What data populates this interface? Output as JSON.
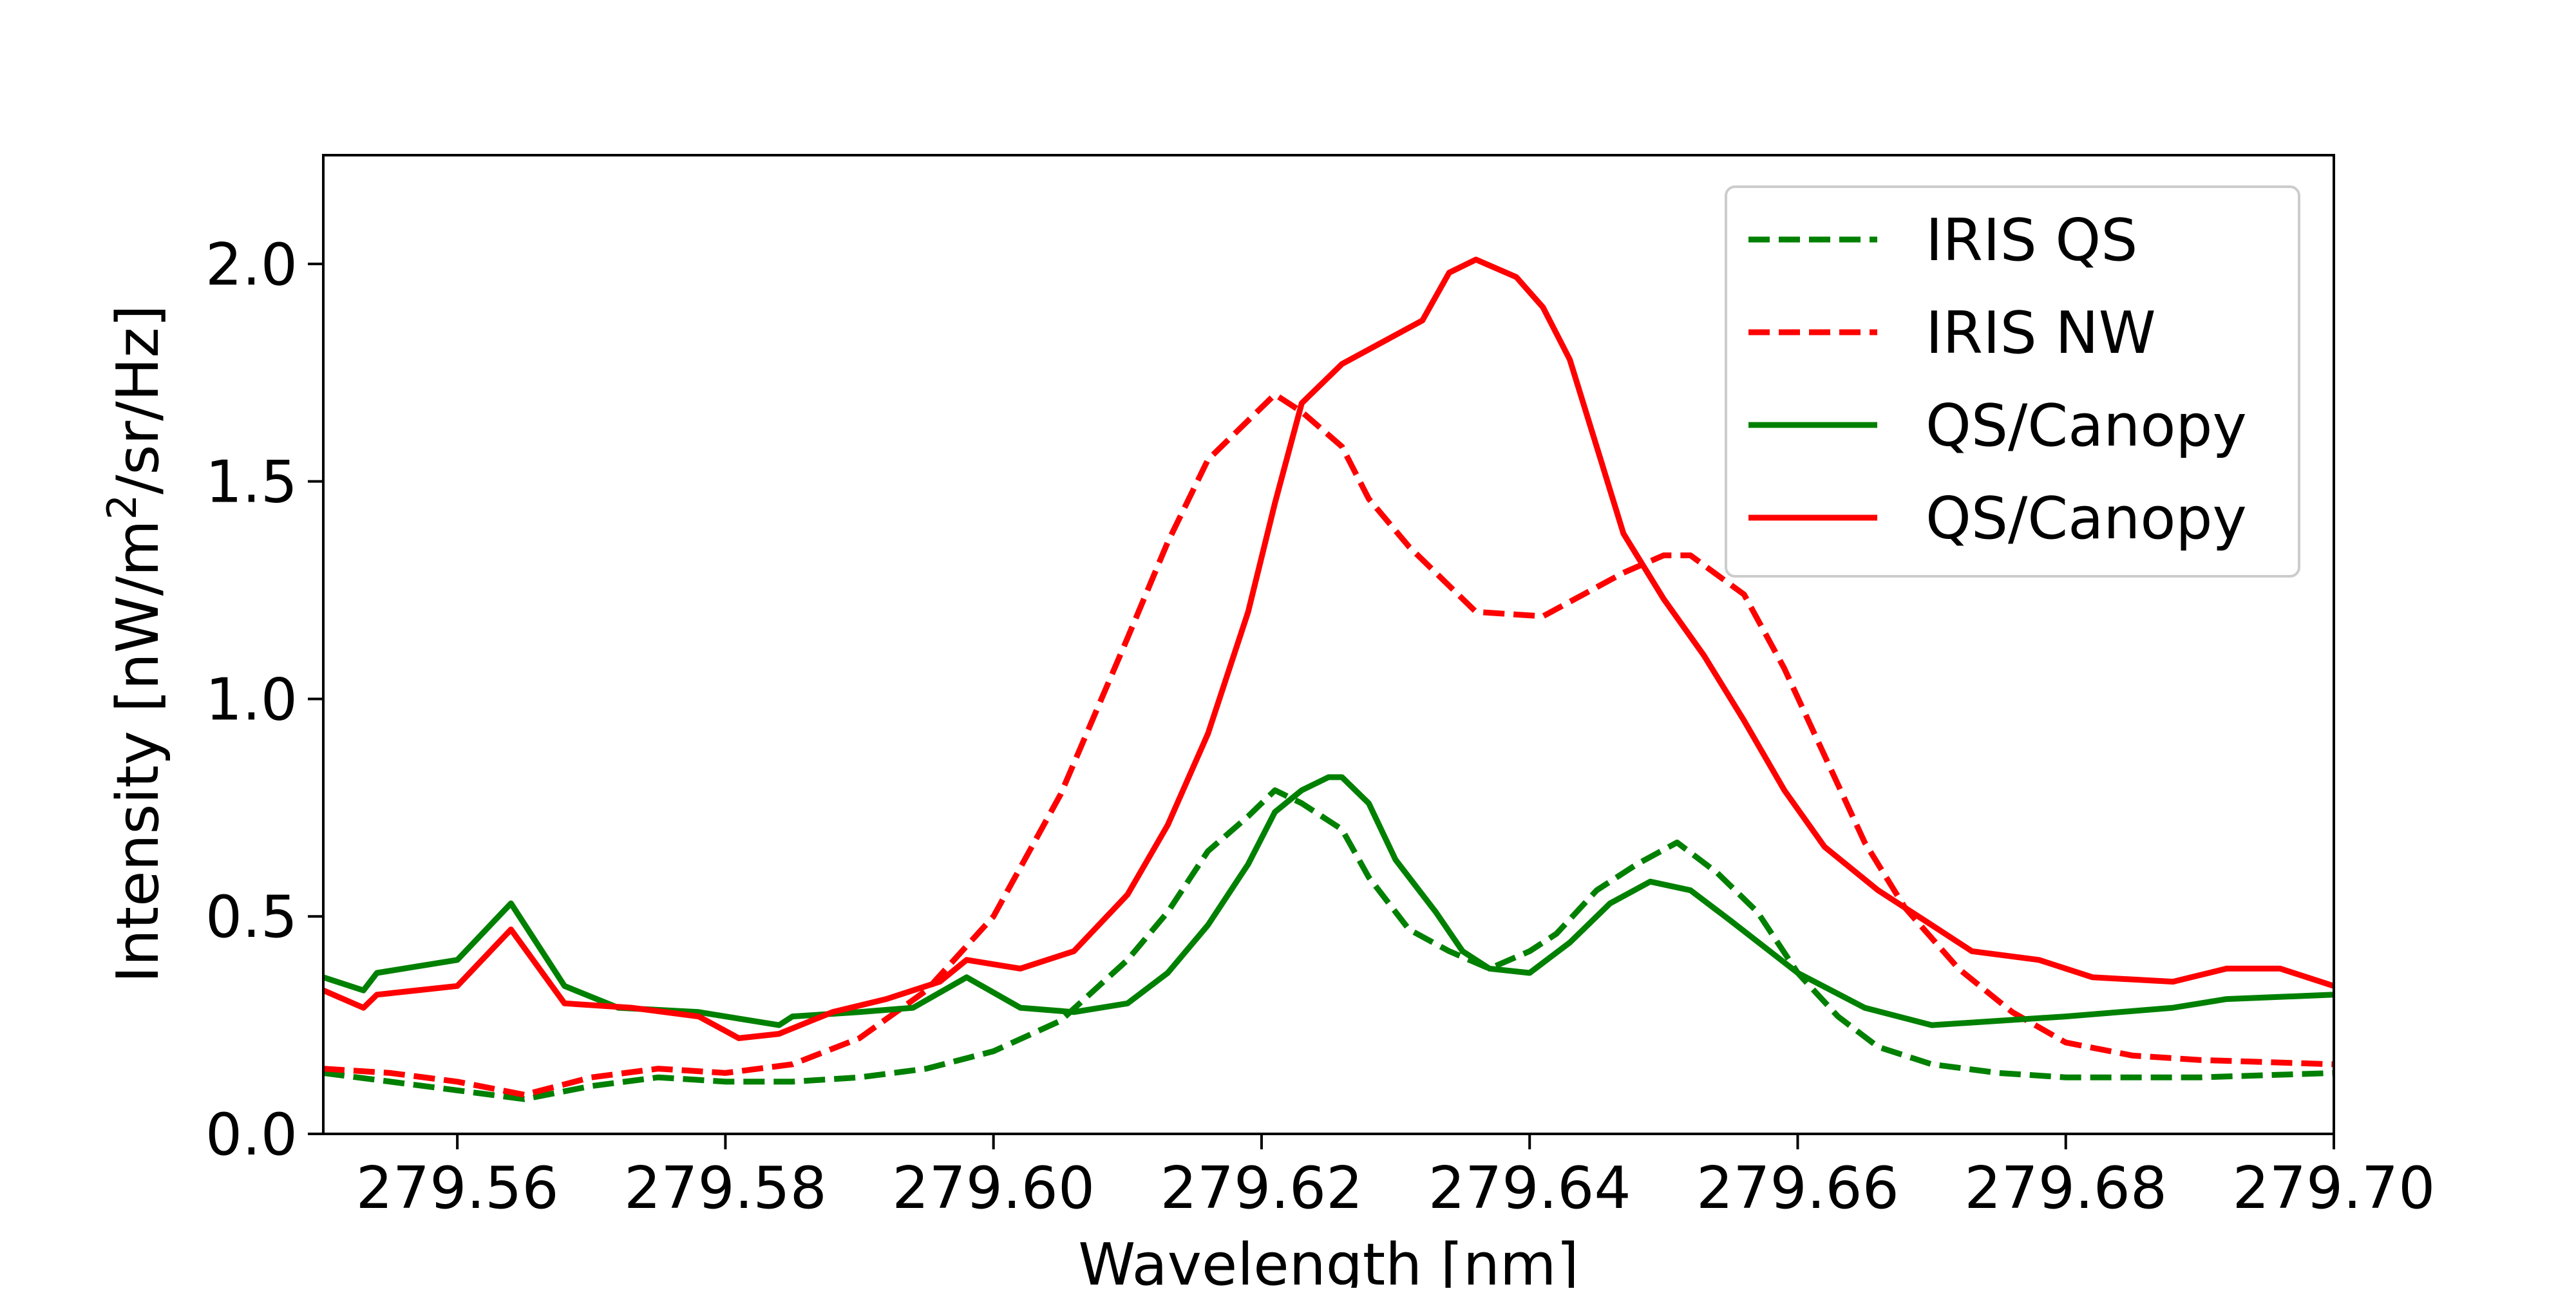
{
  "chart_data": {
    "type": "line",
    "title": "",
    "xlabel": "Wavelength [nm]",
    "ylabel_main": "Intensity [nW/m",
    "ylabel_sup": "2",
    "ylabel_tail": "/sr/Hz]",
    "xlim": [
      279.55,
      279.7
    ],
    "ylim": [
      0.0,
      2.25
    ],
    "grid": false,
    "legend_position": "top-right",
    "x_ticks": [
      {
        "value": 279.56,
        "label": "279.56"
      },
      {
        "value": 279.58,
        "label": "279.58"
      },
      {
        "value": 279.6,
        "label": "279.60"
      },
      {
        "value": 279.62,
        "label": "279.62"
      },
      {
        "value": 279.64,
        "label": "279.64"
      },
      {
        "value": 279.66,
        "label": "279.66"
      },
      {
        "value": 279.68,
        "label": "279.68"
      },
      {
        "value": 279.7,
        "label": "279.70"
      }
    ],
    "y_ticks": [
      {
        "value": 0.0,
        "label": "0.0"
      },
      {
        "value": 0.5,
        "label": "0.5"
      },
      {
        "value": 1.0,
        "label": "1.0"
      },
      {
        "value": 1.5,
        "label": "1.5"
      },
      {
        "value": 2.0,
        "label": "2.0"
      }
    ],
    "series": [
      {
        "name": "IRIS QS",
        "color": "#008000",
        "dash": true,
        "points": [
          [
            279.55,
            0.14
          ],
          [
            279.555,
            0.12
          ],
          [
            279.56,
            0.1
          ],
          [
            279.565,
            0.08
          ],
          [
            279.57,
            0.11
          ],
          [
            279.575,
            0.13
          ],
          [
            279.58,
            0.12
          ],
          [
            279.585,
            0.12
          ],
          [
            279.59,
            0.13
          ],
          [
            279.595,
            0.15
          ],
          [
            279.6,
            0.19
          ],
          [
            279.605,
            0.26
          ],
          [
            279.61,
            0.4
          ],
          [
            279.613,
            0.51
          ],
          [
            279.616,
            0.65
          ],
          [
            279.619,
            0.73
          ],
          [
            279.621,
            0.79
          ],
          [
            279.623,
            0.76
          ],
          [
            279.626,
            0.7
          ],
          [
            279.628,
            0.59
          ],
          [
            279.631,
            0.47
          ],
          [
            279.634,
            0.42
          ],
          [
            279.637,
            0.38
          ],
          [
            279.64,
            0.42
          ],
          [
            279.642,
            0.46
          ],
          [
            279.645,
            0.56
          ],
          [
            279.648,
            0.62
          ],
          [
            279.651,
            0.67
          ],
          [
            279.654,
            0.6
          ],
          [
            279.657,
            0.51
          ],
          [
            279.66,
            0.37
          ],
          [
            279.663,
            0.27
          ],
          [
            279.666,
            0.2
          ],
          [
            279.67,
            0.16
          ],
          [
            279.675,
            0.14
          ],
          [
            279.68,
            0.13
          ],
          [
            279.69,
            0.13
          ],
          [
            279.7,
            0.14
          ]
        ]
      },
      {
        "name": "IRIS NW",
        "color": "#ff0000",
        "dash": true,
        "points": [
          [
            279.55,
            0.15
          ],
          [
            279.555,
            0.14
          ],
          [
            279.56,
            0.12
          ],
          [
            279.565,
            0.09
          ],
          [
            279.57,
            0.13
          ],
          [
            279.575,
            0.15
          ],
          [
            279.58,
            0.14
          ],
          [
            279.585,
            0.16
          ],
          [
            279.59,
            0.22
          ],
          [
            279.595,
            0.33
          ],
          [
            279.6,
            0.5
          ],
          [
            279.605,
            0.78
          ],
          [
            279.61,
            1.14
          ],
          [
            279.613,
            1.36
          ],
          [
            279.616,
            1.55
          ],
          [
            279.619,
            1.64
          ],
          [
            279.621,
            1.7
          ],
          [
            279.623,
            1.66
          ],
          [
            279.626,
            1.58
          ],
          [
            279.628,
            1.46
          ],
          [
            279.631,
            1.35
          ],
          [
            279.634,
            1.26
          ],
          [
            279.636,
            1.2
          ],
          [
            279.641,
            1.19
          ],
          [
            279.644,
            1.24
          ],
          [
            279.647,
            1.29
          ],
          [
            279.65,
            1.33
          ],
          [
            279.652,
            1.33
          ],
          [
            279.656,
            1.24
          ],
          [
            279.659,
            1.07
          ],
          [
            279.662,
            0.87
          ],
          [
            279.665,
            0.67
          ],
          [
            279.668,
            0.52
          ],
          [
            279.672,
            0.38
          ],
          [
            279.676,
            0.28
          ],
          [
            279.68,
            0.21
          ],
          [
            279.685,
            0.18
          ],
          [
            279.69,
            0.17
          ],
          [
            279.7,
            0.16
          ]
        ]
      },
      {
        "name": "QS/Canopy",
        "color": "#008000",
        "dash": false,
        "points": [
          [
            279.55,
            0.36
          ],
          [
            279.553,
            0.33
          ],
          [
            279.554,
            0.37
          ],
          [
            279.56,
            0.4
          ],
          [
            279.564,
            0.53
          ],
          [
            279.568,
            0.34
          ],
          [
            279.572,
            0.29
          ],
          [
            279.578,
            0.28
          ],
          [
            279.584,
            0.25
          ],
          [
            279.585,
            0.27
          ],
          [
            279.59,
            0.28
          ],
          [
            279.594,
            0.29
          ],
          [
            279.598,
            0.36
          ],
          [
            279.602,
            0.29
          ],
          [
            279.606,
            0.28
          ],
          [
            279.61,
            0.3
          ],
          [
            279.613,
            0.37
          ],
          [
            279.616,
            0.48
          ],
          [
            279.619,
            0.62
          ],
          [
            279.621,
            0.74
          ],
          [
            279.623,
            0.79
          ],
          [
            279.625,
            0.82
          ],
          [
            279.626,
            0.82
          ],
          [
            279.628,
            0.76
          ],
          [
            279.63,
            0.63
          ],
          [
            279.633,
            0.51
          ],
          [
            279.635,
            0.42
          ],
          [
            279.637,
            0.38
          ],
          [
            279.64,
            0.37
          ],
          [
            279.643,
            0.44
          ],
          [
            279.646,
            0.53
          ],
          [
            279.649,
            0.58
          ],
          [
            279.652,
            0.56
          ],
          [
            279.655,
            0.49
          ],
          [
            279.66,
            0.37
          ],
          [
            279.665,
            0.29
          ],
          [
            279.67,
            0.25
          ],
          [
            279.68,
            0.27
          ],
          [
            279.688,
            0.29
          ],
          [
            279.692,
            0.31
          ],
          [
            279.7,
            0.32
          ]
        ]
      },
      {
        "name": "QS/Canopy",
        "color": "#ff0000",
        "dash": false,
        "points": [
          [
            279.55,
            0.33
          ],
          [
            279.553,
            0.29
          ],
          [
            279.554,
            0.32
          ],
          [
            279.56,
            0.34
          ],
          [
            279.564,
            0.47
          ],
          [
            279.568,
            0.3
          ],
          [
            279.573,
            0.29
          ],
          [
            279.578,
            0.27
          ],
          [
            279.581,
            0.22
          ],
          [
            279.584,
            0.23
          ],
          [
            279.588,
            0.28
          ],
          [
            279.592,
            0.31
          ],
          [
            279.596,
            0.35
          ],
          [
            279.598,
            0.4
          ],
          [
            279.602,
            0.38
          ],
          [
            279.606,
            0.42
          ],
          [
            279.61,
            0.55
          ],
          [
            279.613,
            0.71
          ],
          [
            279.616,
            0.92
          ],
          [
            279.619,
            1.2
          ],
          [
            279.621,
            1.45
          ],
          [
            279.623,
            1.68
          ],
          [
            279.626,
            1.77
          ],
          [
            279.629,
            1.82
          ],
          [
            279.632,
            1.87
          ],
          [
            279.634,
            1.98
          ],
          [
            279.636,
            2.01
          ],
          [
            279.639,
            1.97
          ],
          [
            279.641,
            1.9
          ],
          [
            279.643,
            1.78
          ],
          [
            279.645,
            1.58
          ],
          [
            279.647,
            1.38
          ],
          [
            279.65,
            1.23
          ],
          [
            279.653,
            1.1
          ],
          [
            279.656,
            0.95
          ],
          [
            279.659,
            0.79
          ],
          [
            279.662,
            0.66
          ],
          [
            279.666,
            0.56
          ],
          [
            279.67,
            0.48
          ],
          [
            279.673,
            0.42
          ],
          [
            279.678,
            0.4
          ],
          [
            279.682,
            0.36
          ],
          [
            279.688,
            0.35
          ],
          [
            279.692,
            0.38
          ],
          [
            279.696,
            0.38
          ],
          [
            279.7,
            0.34
          ]
        ]
      }
    ]
  }
}
